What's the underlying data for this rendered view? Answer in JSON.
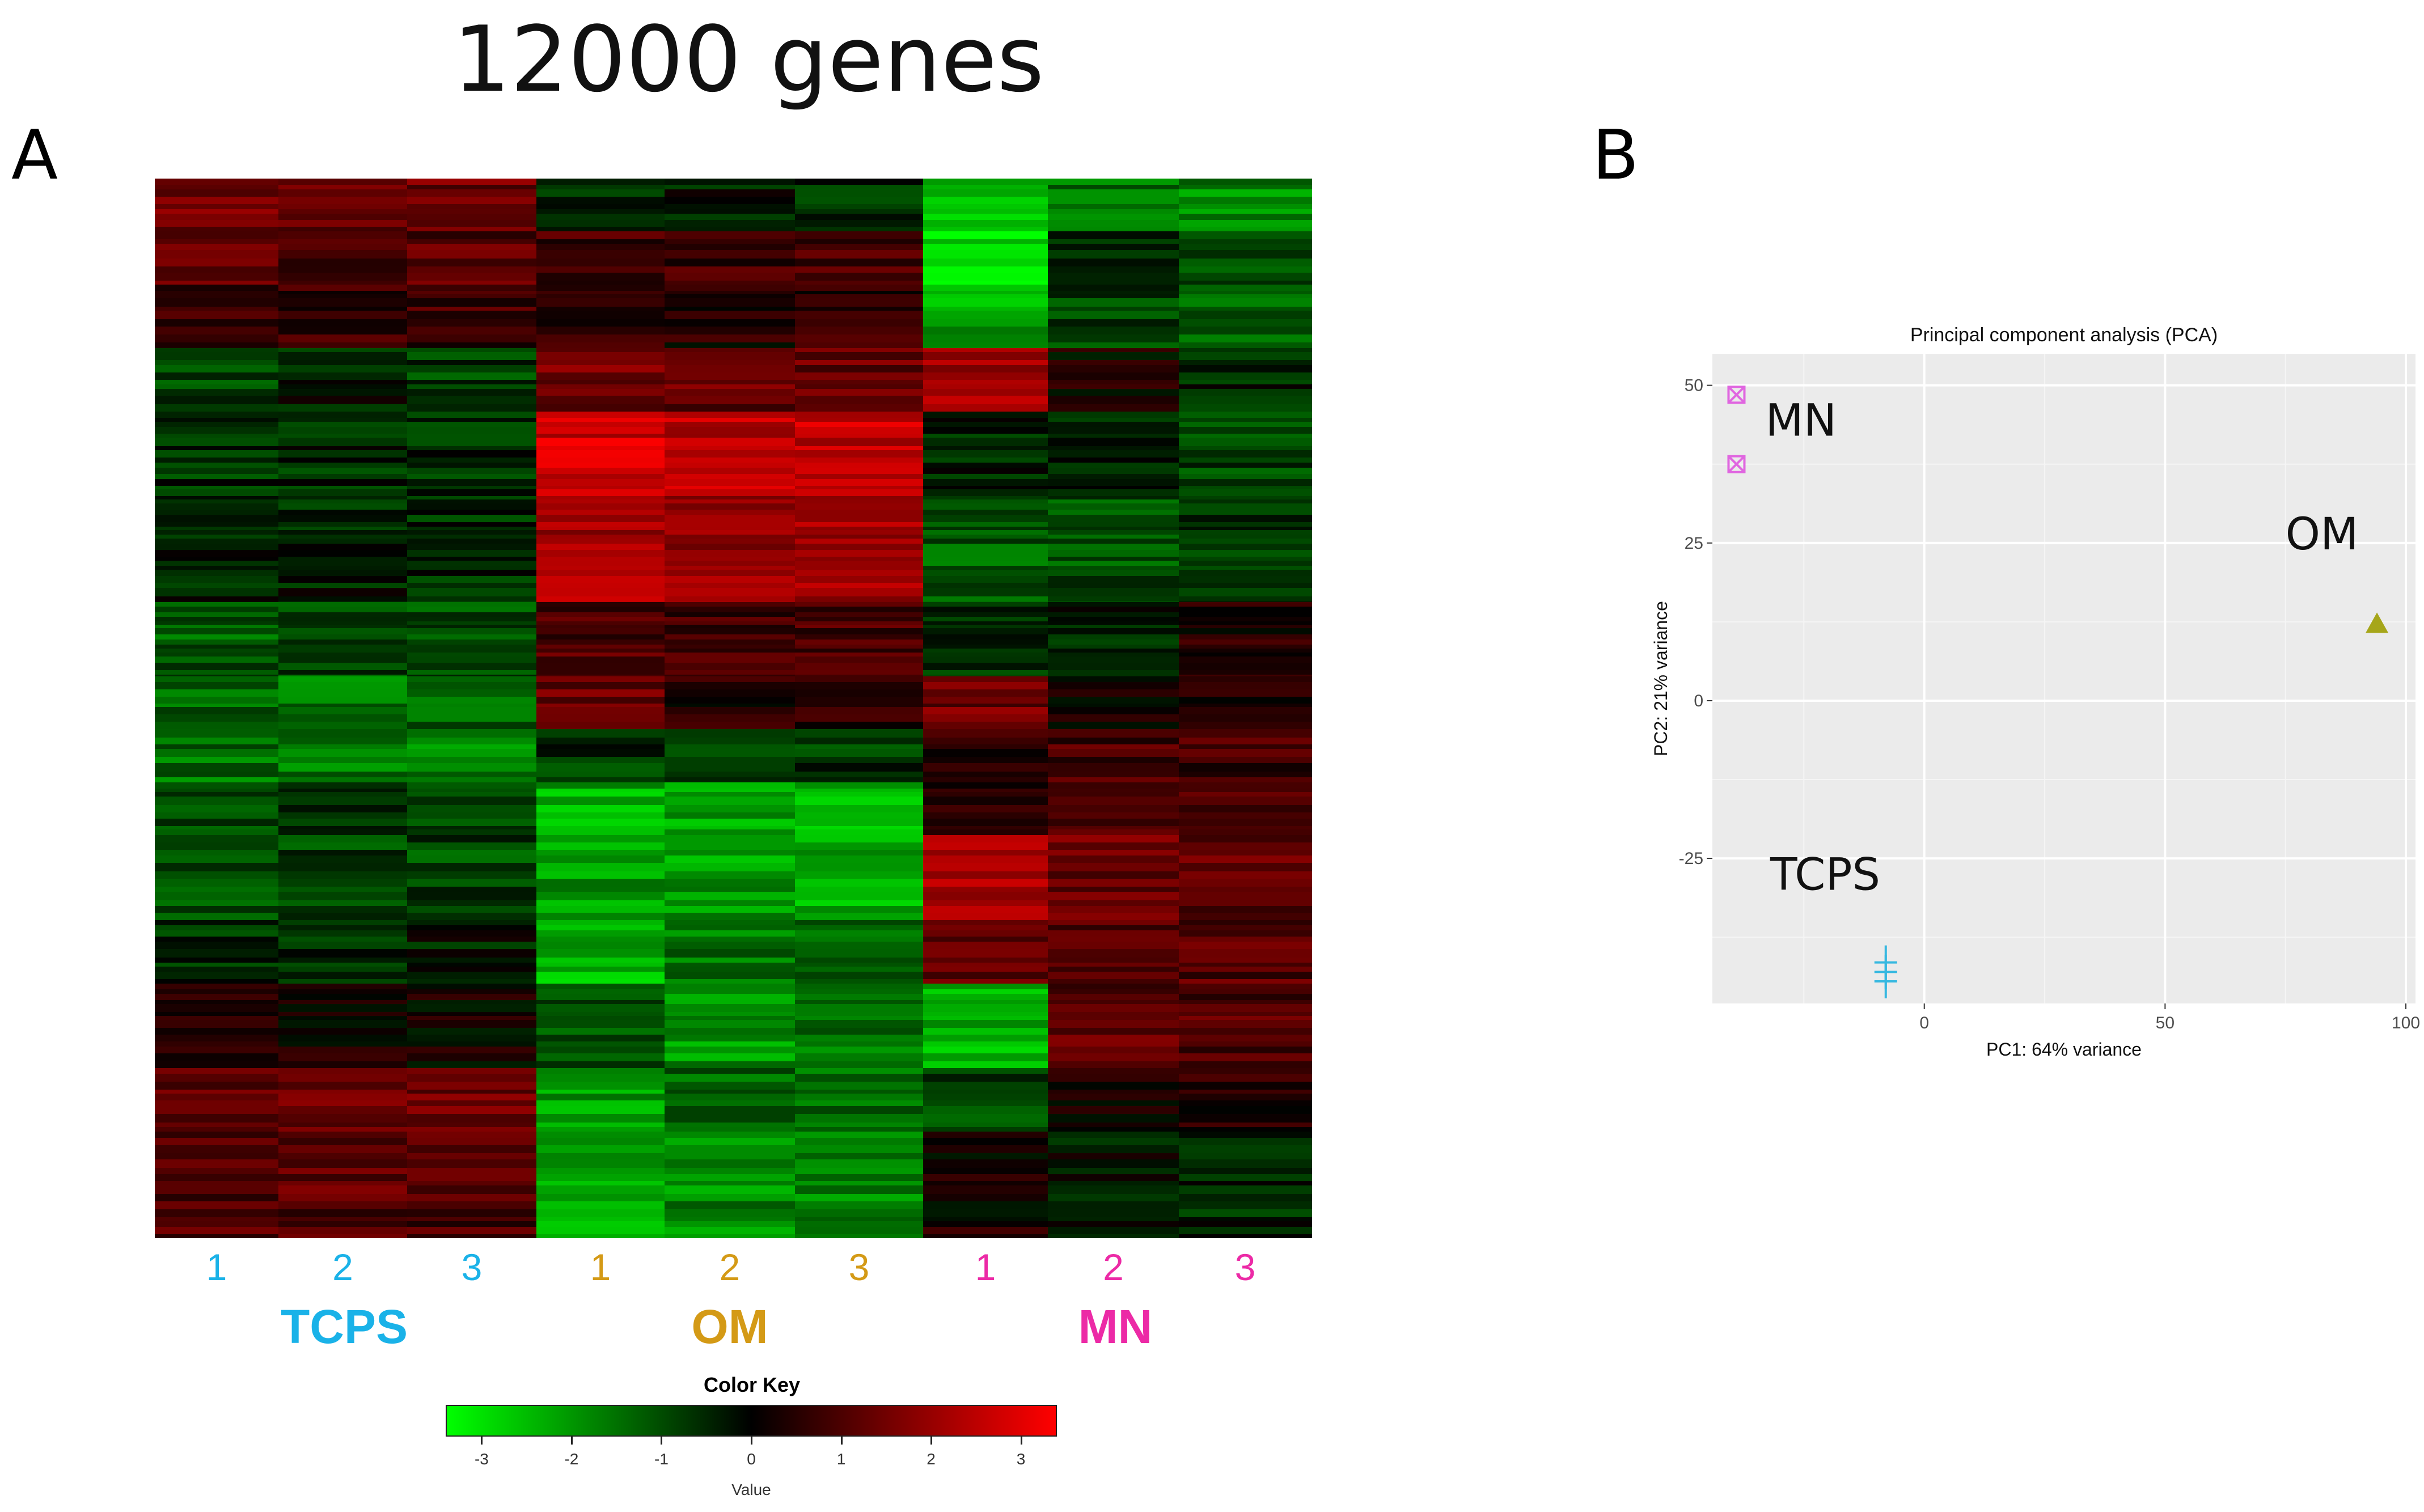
{
  "title": "12000 genes",
  "panels": {
    "a": "A",
    "b": "B"
  },
  "heatmap": {
    "columns": [
      {
        "group": "TCPS",
        "label": "1"
      },
      {
        "group": "TCPS",
        "label": "2"
      },
      {
        "group": "TCPS",
        "label": "3"
      },
      {
        "group": "OM",
        "label": "1"
      },
      {
        "group": "OM",
        "label": "2"
      },
      {
        "group": "OM",
        "label": "3"
      },
      {
        "group": "MN",
        "label": "1"
      },
      {
        "group": "MN",
        "label": "2"
      },
      {
        "group": "MN",
        "label": "3"
      }
    ],
    "groups": [
      {
        "name": "TCPS",
        "color": "#1ab2e8"
      },
      {
        "name": "OM",
        "color": "#d49a16"
      },
      {
        "name": "MN",
        "color": "#ec2aa6"
      }
    ],
    "color_key": {
      "title": "Color Key",
      "xlabel": "Value",
      "ticks": [
        "-3",
        "-2",
        "-1",
        "0",
        "1",
        "2",
        "3"
      ],
      "range": [
        -3.4,
        3.4
      ],
      "low_color": "#00ff00",
      "mid_color": "#000000",
      "high_color": "#ff0000"
    }
  },
  "chart_data": [
    {
      "type": "heatmap",
      "title": "12000 genes",
      "genes": 12000,
      "x": [
        "TCPS 1",
        "TCPS 2",
        "TCPS 3",
        "OM 1",
        "OM 2",
        "OM 3",
        "MN 1",
        "MN 2",
        "MN 3"
      ],
      "row_block_ends_fraction": [
        0.05,
        0.1,
        0.16,
        0.22,
        0.3,
        0.4,
        0.47,
        0.52,
        0.57,
        0.62,
        0.7,
        0.76,
        0.84,
        0.9,
        1.0
      ],
      "values": [
        [
          1.6,
          1.1,
          1.4,
          -0.6,
          -0.3,
          -0.5,
          -2.6,
          -1.5,
          -1.8
        ],
        [
          1.2,
          0.9,
          1.1,
          0.9,
          0.8,
          0.9,
          -3.0,
          -0.6,
          -0.9
        ],
        [
          0.9,
          0.7,
          0.8,
          0.5,
          0.4,
          0.6,
          -2.2,
          -0.8,
          -1.1
        ],
        [
          -0.8,
          -0.4,
          -0.8,
          1.5,
          1.3,
          1.4,
          2.0,
          0.2,
          -0.5
        ],
        [
          -0.6,
          -0.5,
          -0.6,
          2.7,
          2.5,
          2.6,
          -0.5,
          -0.5,
          -0.8
        ],
        [
          -0.3,
          -0.4,
          -0.5,
          2.2,
          2.0,
          2.1,
          -1.2,
          -1.0,
          -0.6
        ],
        [
          -1.2,
          -0.9,
          -1.0,
          1.0,
          0.8,
          1.0,
          -0.7,
          -0.4,
          0.4
        ],
        [
          -1.4,
          -1.5,
          -1.3,
          1.3,
          0.5,
          0.6,
          1.4,
          0.3,
          0.6
        ],
        [
          -1.5,
          -1.6,
          -1.7,
          -0.6,
          -0.8,
          -0.7,
          0.7,
          0.9,
          0.8
        ],
        [
          -1.0,
          -0.6,
          -0.8,
          -2.3,
          -2.2,
          -2.4,
          0.6,
          1.1,
          1.0
        ],
        [
          -1.2,
          -0.9,
          -0.9,
          -2.0,
          -2.1,
          -2.3,
          2.2,
          1.5,
          1.3
        ],
        [
          -0.5,
          -0.5,
          -0.3,
          -2.4,
          -1.5,
          -1.5,
          1.3,
          1.2,
          1.1
        ],
        [
          0.2,
          0.3,
          0.1,
          -1.2,
          -2.0,
          -1.4,
          -2.3,
          1.2,
          1.1
        ],
        [
          1.3,
          1.4,
          1.5,
          -2.0,
          -1.4,
          -1.5,
          -0.8,
          0.3,
          0.6
        ],
        [
          1.0,
          1.1,
          1.0,
          -2.2,
          -1.8,
          -1.7,
          0.3,
          -0.3,
          -0.4
        ]
      ],
      "value_range": [
        -3.4,
        3.4
      ]
    },
    {
      "type": "scatter",
      "title": "Principal component analysis (PCA)",
      "xlabel": "PC1: 64% variance",
      "ylabel": "PC2: 21% variance",
      "xlim": [
        -44,
        102
      ],
      "ylim": [
        -48,
        55
      ],
      "xticks": [
        0,
        50,
        100
      ],
      "yticks": [
        -25,
        0,
        25,
        50
      ],
      "series": [
        {
          "name": "MN",
          "label": "MN",
          "color": "#e066e0",
          "marker": "square-x",
          "points": [
            [
              -39,
              48.5
            ],
            [
              -39,
              37.5
            ]
          ]
        },
        {
          "name": "OM",
          "label": "OM",
          "color": "#a6a61a",
          "marker": "triangle",
          "points": [
            [
              94,
              12
            ]
          ]
        },
        {
          "name": "TCPS",
          "label": "TCPS",
          "color": "#36b8e0",
          "marker": "hash",
          "points": [
            [
              -8,
              -41.5
            ],
            [
              -8,
              -43
            ],
            [
              -8,
              -44.5
            ]
          ]
        }
      ],
      "annotations": [
        {
          "text": "MN",
          "x": -33,
          "y": 42
        },
        {
          "text": "OM",
          "x": 75,
          "y": 24
        },
        {
          "text": "TCPS",
          "x": -32,
          "y": -30
        }
      ]
    }
  ]
}
